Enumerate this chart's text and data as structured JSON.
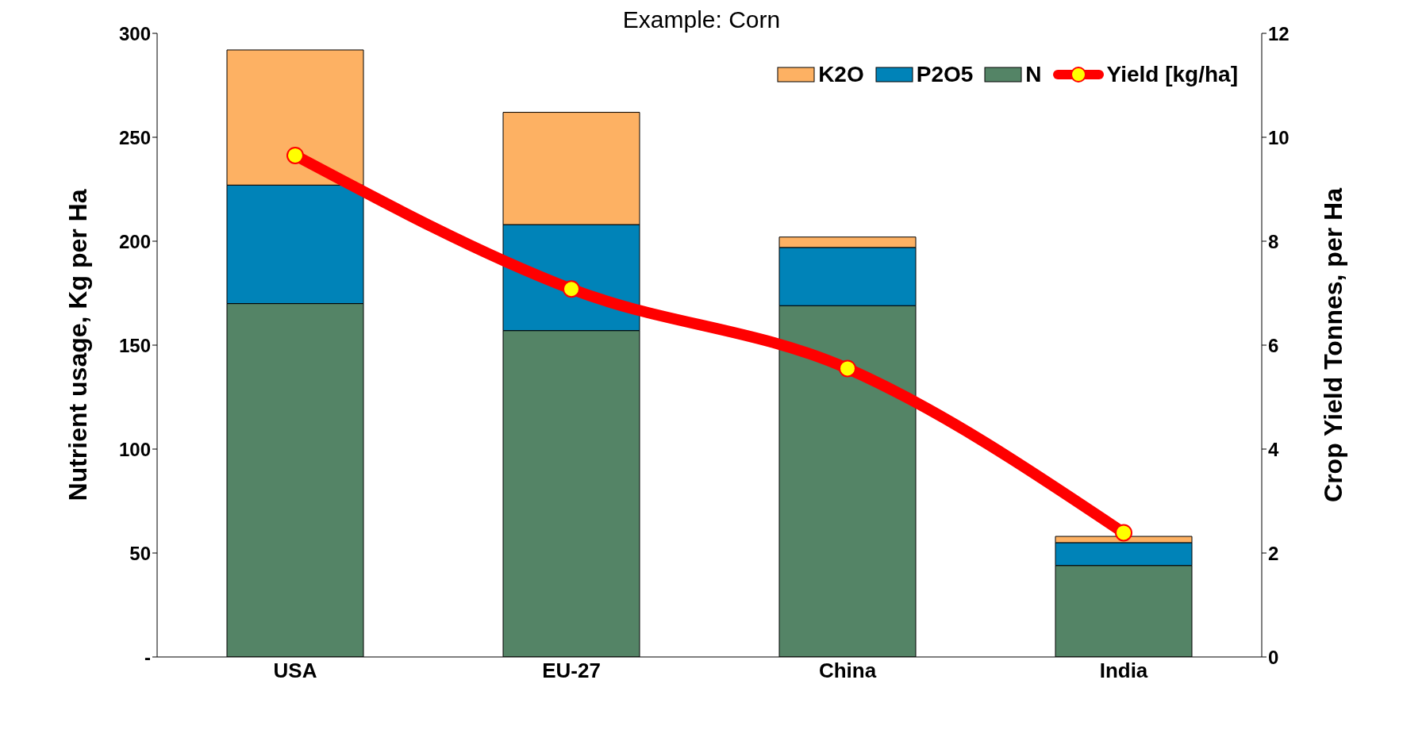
{
  "chart_data": {
    "type": "bar",
    "title": "Example: Corn",
    "ylabel": "Nutrient usage, Kg per Ha",
    "y2label": "Crop Yield Tonnes, per Ha",
    "categories": [
      "USA",
      "EU-27",
      "China",
      "India"
    ],
    "stacked": true,
    "series": [
      {
        "name": "N",
        "color": "#548466",
        "values": [
          170,
          157,
          169,
          44
        ]
      },
      {
        "name": "P2O5",
        "color": "#0083b8",
        "values": [
          57,
          51,
          28,
          11
        ]
      },
      {
        "name": "K2O",
        "color": "#fdb163",
        "values": [
          65,
          54,
          5,
          3
        ]
      },
      {
        "name": "Yield [kg/ha]",
        "type": "line",
        "axis": "y2",
        "color": "#ff0000",
        "values": [
          9.65,
          7.08,
          5.55,
          2.39
        ]
      }
    ],
    "ylim": [
      0,
      300
    ],
    "yticks": [
      {
        "value": 0,
        "label": "-"
      },
      50,
      100,
      150,
      200,
      250,
      300
    ],
    "y2lim": [
      0,
      12
    ],
    "y2ticks": [
      0,
      2,
      4,
      6,
      8,
      10,
      12
    ],
    "legend": "top right",
    "marker": "circle",
    "line_style": "solid"
  }
}
